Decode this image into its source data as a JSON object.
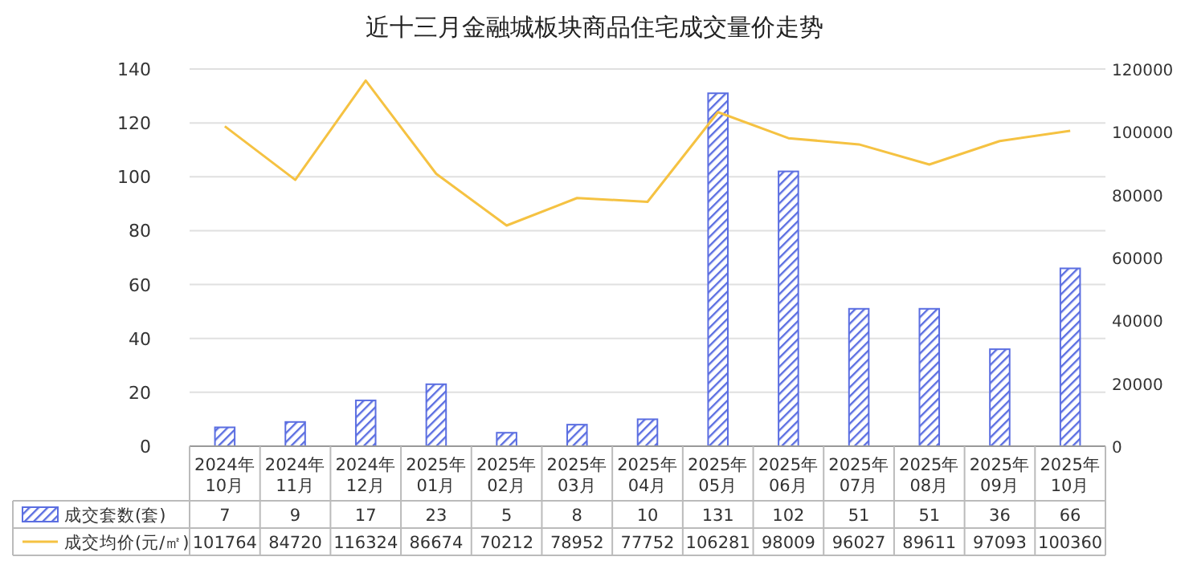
{
  "chart_data": {
    "type": "bar",
    "title": "近十三月金融城板块商品住宅成交量价走势",
    "categories": [
      "2024年10月",
      "2024年11月",
      "2024年12月",
      "2025年01月",
      "2025年02月",
      "2025年03月",
      "2025年04月",
      "2025年05月",
      "2025年06月",
      "2025年07月",
      "2025年08月",
      "2025年09月",
      "2025年10月"
    ],
    "series": [
      {
        "name": "成交套数(套)",
        "color": "#5b6ee1",
        "values": [
          7,
          9,
          17,
          23,
          5,
          8,
          10,
          131,
          102,
          51,
          51,
          36,
          66
        ]
      },
      {
        "name": "成交均价(元/㎡)",
        "type": "line",
        "axis": "y2",
        "color": "#f5c242",
        "values": [
          101764,
          84720,
          116324,
          86674,
          70212,
          78952,
          77752,
          106281,
          98009,
          96027,
          89611,
          97093,
          100360
        ]
      }
    ],
    "ylim": [
      0,
      140
    ],
    "yticks": [
      0,
      20,
      40,
      60,
      80,
      100,
      120,
      140
    ],
    "y2lim": [
      0,
      120000
    ],
    "y2ticks": [
      0,
      20000,
      40000,
      60000,
      80000,
      100000,
      120000
    ],
    "grid": "y",
    "legend": "bottom",
    "data_labels": true,
    "marker": "none",
    "line_style": "solid"
  }
}
